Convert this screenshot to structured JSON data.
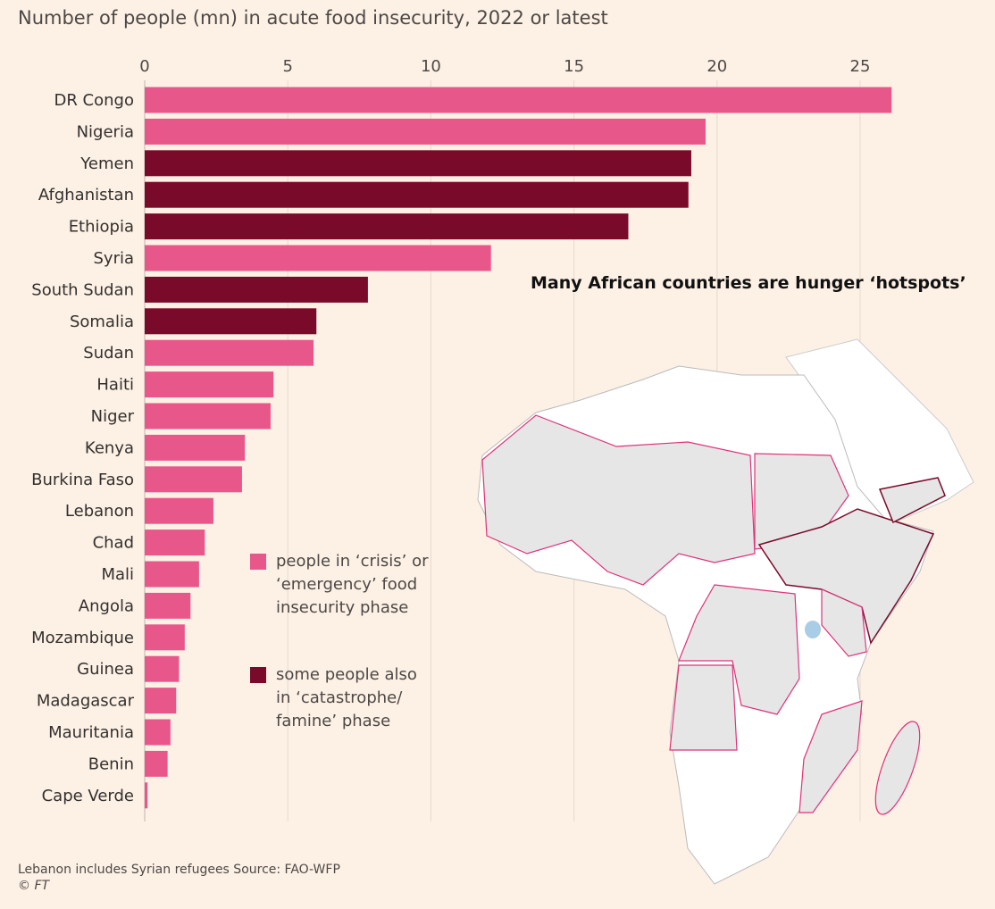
{
  "title": "Number of people (mn) in acute food insecurity, 2022 or latest",
  "map_title": "Many African countries are hunger ‘hotspots’",
  "footnote": "Lebanon includes Syrian refugees   Source: FAO-WFP",
  "copyright": "© FT",
  "colors": {
    "crisis": "#e8578a",
    "famine": "#7a0a2a",
    "background": "#fdf1e6",
    "map_hotspot": "#e6e6e6",
    "map_border": "#e0327a"
  },
  "chart_data": {
    "type": "bar",
    "orientation": "horizontal",
    "title": "Number of people (mn) in acute food insecurity, 2022 or latest",
    "xlim": [
      0,
      26
    ],
    "xticks": [
      0,
      5,
      10,
      15,
      20,
      25
    ],
    "grid": true,
    "categories": [
      "DR Congo",
      "Nigeria",
      "Yemen",
      "Afghanistan",
      "Ethiopia",
      "Syria",
      "South Sudan",
      "Somalia",
      "Sudan",
      "Haiti",
      "Niger",
      "Kenya",
      "Burkina Faso",
      "Lebanon",
      "Chad",
      "Mali",
      "Angola",
      "Mozambique",
      "Guinea",
      "Madagascar",
      "Mauritania",
      "Benin",
      "Cape Verde"
    ],
    "values": [
      26.1,
      19.6,
      19.1,
      19.0,
      16.9,
      12.1,
      7.8,
      6.0,
      5.9,
      4.5,
      4.4,
      3.5,
      3.4,
      2.4,
      2.1,
      1.9,
      1.6,
      1.4,
      1.2,
      1.1,
      0.9,
      0.8,
      0.1
    ],
    "famine": [
      false,
      false,
      true,
      true,
      true,
      false,
      true,
      true,
      false,
      false,
      false,
      false,
      false,
      false,
      false,
      false,
      false,
      false,
      false,
      false,
      false,
      false,
      false
    ],
    "legend": [
      {
        "label": "people in ‘crisis’ or ‘emergency’ food insecurity phase",
        "color": "#e8578a"
      },
      {
        "label": "some people also in ‘catastrophe/ famine’ phase",
        "color": "#7a0a2a"
      }
    ]
  }
}
